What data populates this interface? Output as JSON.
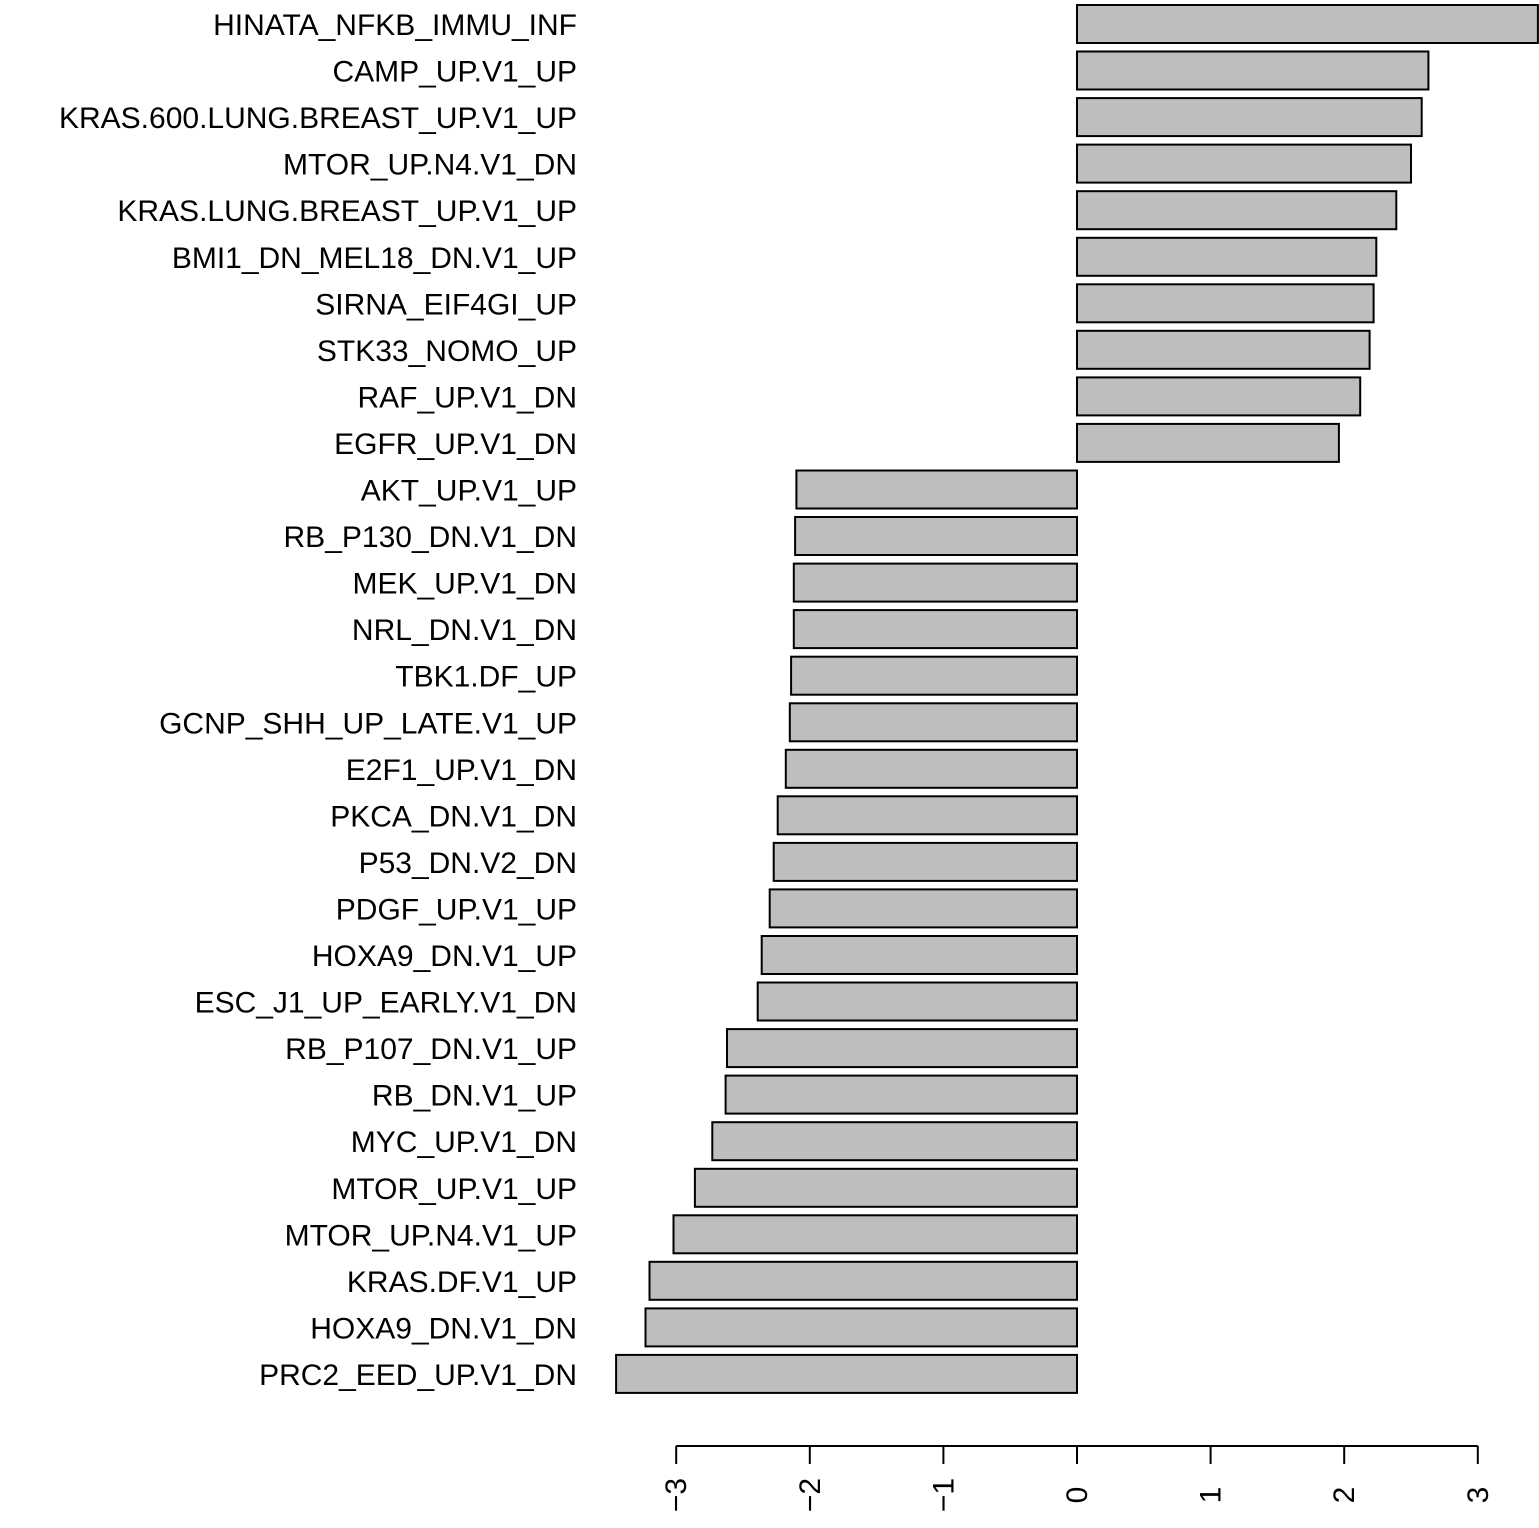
{
  "chart_data": {
    "type": "bar",
    "orientation": "horizontal",
    "title": "",
    "xlabel": "",
    "ylabel": "",
    "grid": false,
    "legend": "none",
    "bar_color": "#bebebe",
    "edge_color": "#000000",
    "xlim": [
      -3.4,
      3.45
    ],
    "x_ticks": [
      -3,
      -2,
      -1,
      0,
      1,
      2,
      3
    ],
    "x_tick_labels": [
      "−3",
      "−2",
      "−1",
      "0",
      "1",
      "2",
      "3"
    ],
    "categories": [
      "HINATA_NFKB_IMMU_INF",
      "CAMP_UP.V1_UP",
      "KRAS.600.LUNG.BREAST_UP.V1_UP",
      "MTOR_UP.N4.V1_DN",
      "KRAS.LUNG.BREAST_UP.V1_UP",
      "BMI1_DN_MEL18_DN.V1_UP",
      "SIRNA_EIF4GI_UP",
      "STK33_NOMO_UP",
      "RAF_UP.V1_DN",
      "EGFR_UP.V1_DN",
      "AKT_UP.V1_UP",
      "RB_P130_DN.V1_DN",
      "MEK_UP.V1_DN",
      "NRL_DN.V1_DN",
      "TBK1.DF_UP",
      "GCNP_SHH_UP_LATE.V1_UP",
      "E2F1_UP.V1_DN",
      "PKCA_DN.V1_DN",
      "P53_DN.V2_DN",
      "PDGF_UP.V1_UP",
      "HOXA9_DN.V1_UP",
      "ESC_J1_UP_EARLY.V1_DN",
      "RB_P107_DN.V1_UP",
      "RB_DN.V1_UP",
      "MYC_UP.V1_DN",
      "MTOR_UP.V1_UP",
      "MTOR_UP.N4.V1_UP",
      "KRAS.DF.V1_UP",
      "HOXA9_DN.V1_DN",
      "PRC2_EED_UP.V1_DN"
    ],
    "values": [
      3.45,
      2.63,
      2.58,
      2.5,
      2.39,
      2.24,
      2.22,
      2.19,
      2.12,
      1.96,
      -2.1,
      -2.11,
      -2.12,
      -2.12,
      -2.14,
      -2.15,
      -2.18,
      -2.24,
      -2.27,
      -2.3,
      -2.36,
      -2.39,
      -2.62,
      -2.63,
      -2.73,
      -2.86,
      -3.02,
      -3.2,
      -3.23,
      -3.45
    ]
  }
}
